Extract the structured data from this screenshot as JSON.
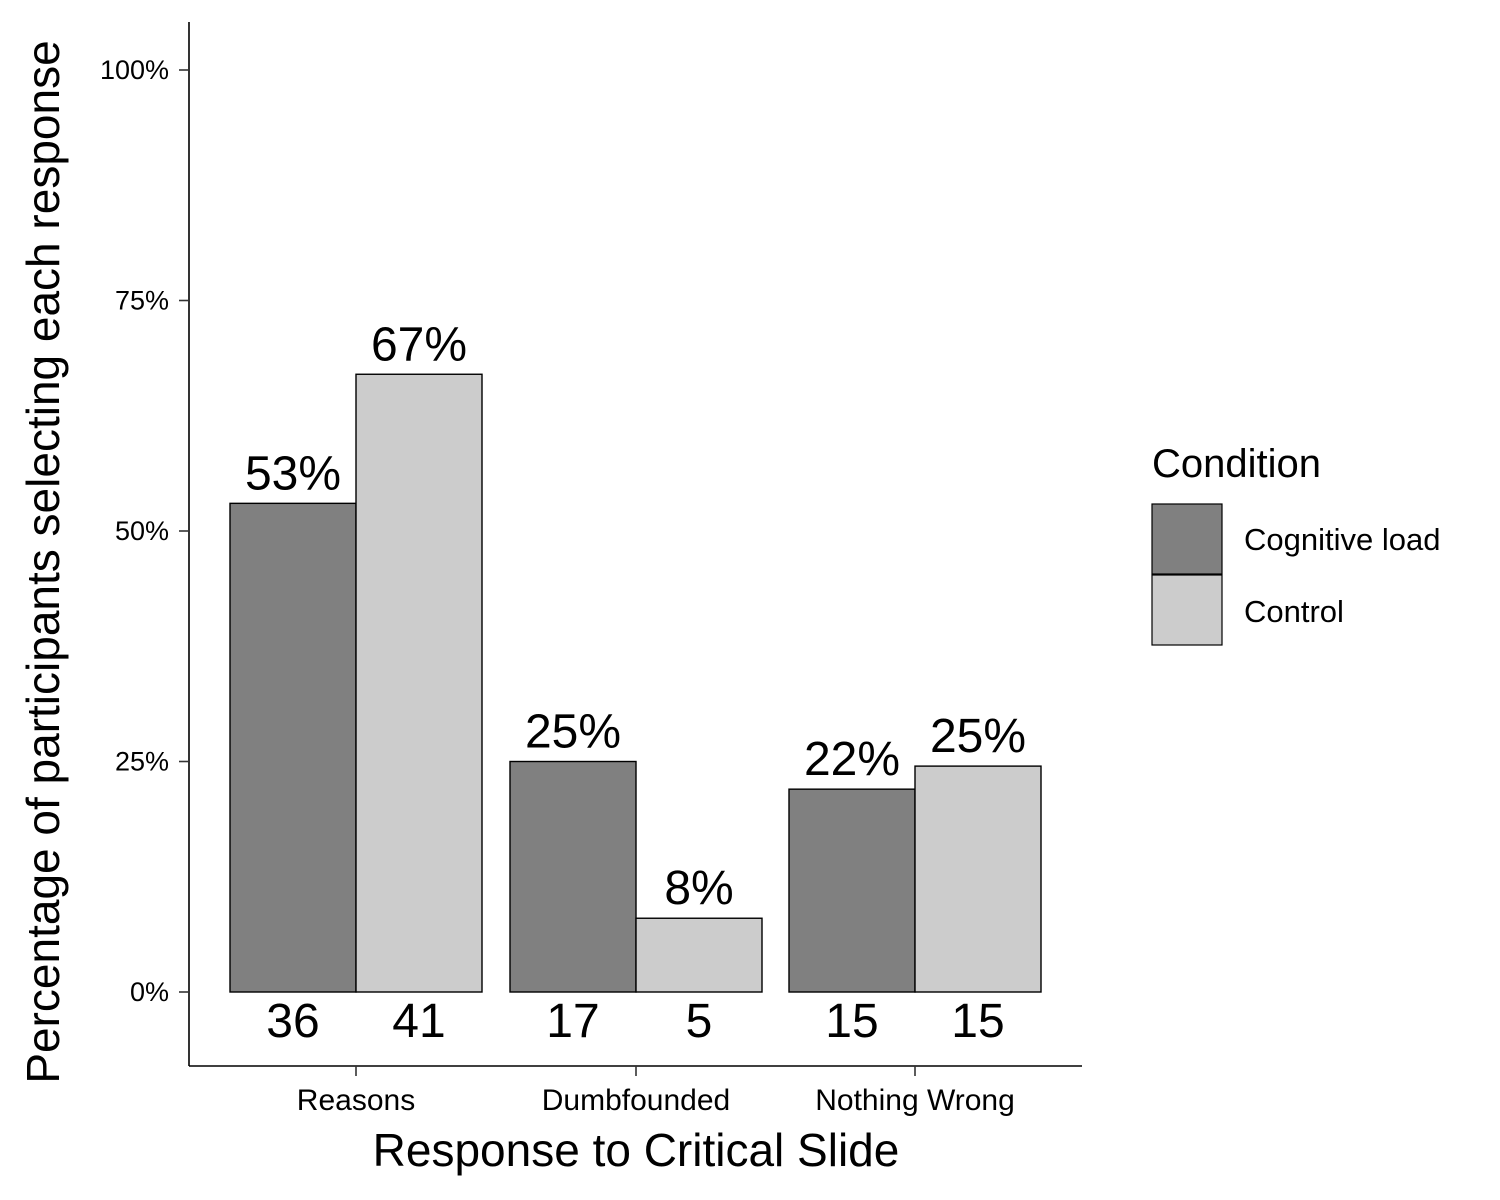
{
  "chart_data": {
    "type": "bar",
    "title": "",
    "xlabel": "Response to Critical Slide",
    "ylabel": "Percentage of participants selecting each response",
    "ylim": [
      -0.08,
      1.05
    ],
    "yticks": [
      0,
      0.25,
      0.5,
      0.75,
      1.0
    ],
    "ytick_labels": [
      "0%",
      "25%",
      "50%",
      "75%",
      "100%"
    ],
    "categories": [
      "Reasons",
      "Dumbfounded",
      "Nothing Wrong"
    ],
    "series": [
      {
        "name": "Cognitive load",
        "color": "#808080",
        "values": [
          0.53,
          0.25,
          0.22
        ],
        "value_labels": [
          "53%",
          "25%",
          "22%"
        ],
        "counts": [
          "36",
          "17",
          "15"
        ]
      },
      {
        "name": "Control",
        "color": "#cccccc",
        "values": [
          0.67,
          0.08,
          0.245
        ],
        "value_labels": [
          "67%",
          "8%",
          "25%"
        ],
        "counts": [
          "41",
          "5",
          "15"
        ]
      }
    ],
    "legend": {
      "title": "Condition",
      "position": "right"
    },
    "grid": false
  }
}
